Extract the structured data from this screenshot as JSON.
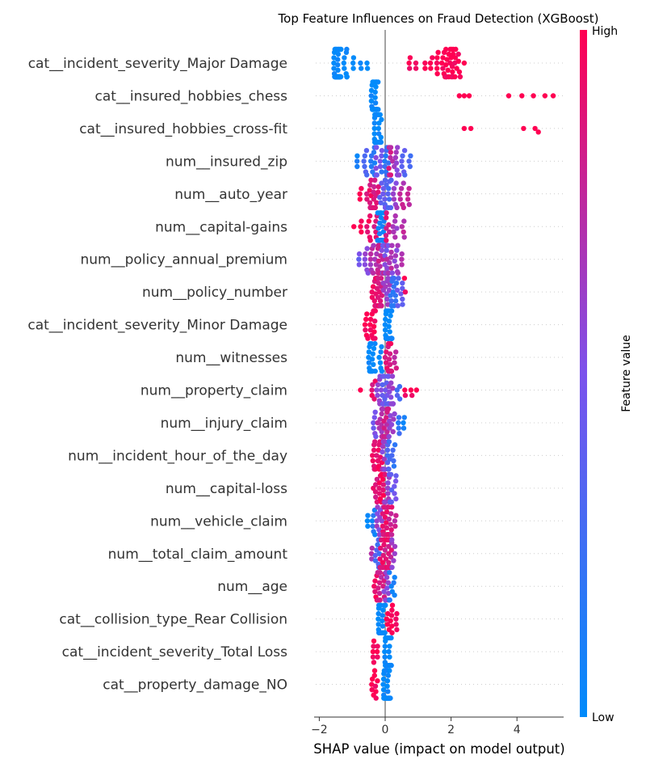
{
  "chart_data": {
    "type": "scatter",
    "subtype": "shap-beeswarm",
    "title": "Top Feature Influences on Fraud Detection (XGBoost)",
    "xlabel": "SHAP value (impact on model output)",
    "xlim": [
      -2.2,
      5.4
    ],
    "xticks": [
      -2,
      0,
      2,
      4
    ],
    "xtick_labels": [
      "−2",
      "0",
      "2",
      "4"
    ],
    "grid": false,
    "colorbar": {
      "label": "Feature value",
      "high_label": "High",
      "low_label": "Low",
      "low_color": "#008bfb",
      "mid_color": "#7c52ec",
      "high_color": "#ff0052",
      "placement": "right"
    },
    "features": [
      {
        "name": "cat__incident_severity_Major Damage",
        "points": [
          [
            -1.45,
            0,
            60
          ],
          [
            -1.2,
            0,
            10
          ],
          [
            -0.95,
            0,
            3
          ],
          [
            -0.75,
            0,
            2
          ],
          [
            -0.55,
            0,
            2
          ],
          [
            0.75,
            1,
            3
          ],
          [
            0.95,
            1,
            2
          ],
          [
            1.2,
            1,
            2
          ],
          [
            1.4,
            1,
            3
          ],
          [
            1.6,
            1,
            5
          ],
          [
            1.8,
            1,
            10
          ],
          [
            1.95,
            1,
            12
          ],
          [
            2.1,
            1,
            8
          ],
          [
            2.25,
            1,
            4
          ],
          [
            2.4,
            1,
            1
          ]
        ]
      },
      {
        "name": "cat__insured_hobbies_chess",
        "points": [
          [
            -0.32,
            0,
            40
          ],
          [
            2.25,
            1,
            1
          ],
          [
            2.4,
            1,
            1
          ],
          [
            2.55,
            1,
            1
          ],
          [
            3.75,
            1,
            1
          ],
          [
            4.15,
            1,
            1
          ],
          [
            4.5,
            1,
            1
          ],
          [
            4.85,
            1,
            1
          ],
          [
            5.1,
            1,
            1
          ]
        ]
      },
      {
        "name": "cat__insured_hobbies_cross-fit",
        "points": [
          [
            -0.22,
            0,
            40
          ],
          [
            2.4,
            1,
            1
          ],
          [
            2.6,
            1,
            1
          ],
          [
            4.2,
            1,
            1
          ],
          [
            4.55,
            1,
            1
          ],
          [
            4.65,
            1,
            1
          ]
        ]
      },
      {
        "name": "num__insured_zip",
        "points": [
          [
            -0.85,
            0.1,
            3
          ],
          [
            -0.6,
            0.3,
            6
          ],
          [
            -0.4,
            0.15,
            8
          ],
          [
            -0.2,
            0.5,
            10
          ],
          [
            0.0,
            0.2,
            12
          ],
          [
            0.15,
            0.8,
            10
          ],
          [
            0.35,
            0.6,
            8
          ],
          [
            0.55,
            0.35,
            6
          ],
          [
            0.75,
            0.3,
            3
          ]
        ]
      },
      {
        "name": "num__auto_year",
        "points": [
          [
            -0.75,
            0.95,
            3
          ],
          [
            -0.5,
            0.9,
            8
          ],
          [
            -0.3,
            0.85,
            12
          ],
          [
            -0.1,
            0.4,
            10
          ],
          [
            0.1,
            0.3,
            8
          ],
          [
            0.3,
            0.6,
            6
          ],
          [
            0.5,
            0.75,
            6
          ],
          [
            0.7,
            0.8,
            4
          ]
        ]
      },
      {
        "name": "num__capital-gains",
        "points": [
          [
            -0.95,
            1,
            1
          ],
          [
            -0.75,
            1,
            3
          ],
          [
            -0.5,
            0.95,
            6
          ],
          [
            -0.3,
            0.9,
            5
          ],
          [
            -0.12,
            0.05,
            25
          ],
          [
            0.1,
            0.85,
            7
          ],
          [
            0.3,
            0.65,
            6
          ],
          [
            0.55,
            0.75,
            4
          ]
        ]
      },
      {
        "name": "num__policy_annual_premium",
        "points": [
          [
            -0.8,
            0.45,
            3
          ],
          [
            -0.55,
            0.6,
            6
          ],
          [
            -0.35,
            0.7,
            10
          ],
          [
            -0.15,
            0.8,
            14
          ],
          [
            0.0,
            0.5,
            16
          ],
          [
            0.15,
            0.7,
            12
          ],
          [
            0.3,
            0.6,
            8
          ],
          [
            0.5,
            0.75,
            3
          ]
        ]
      },
      {
        "name": "num__policy_number",
        "points": [
          [
            -0.3,
            0.9,
            15
          ],
          [
            -0.15,
            0.85,
            14
          ],
          [
            0.05,
            0.6,
            10
          ],
          [
            0.25,
            0.2,
            12
          ],
          [
            0.45,
            0.4,
            8
          ],
          [
            0.6,
            0.95,
            2
          ]
        ]
      },
      {
        "name": "cat__incident_severity_Minor Damage",
        "points": [
          [
            -0.55,
            1,
            6
          ],
          [
            -0.35,
            1,
            12
          ],
          [
            0.1,
            0,
            40
          ]
        ]
      },
      {
        "name": "num__witnesses",
        "points": [
          [
            -0.4,
            0,
            18
          ],
          [
            -0.15,
            0,
            6
          ],
          [
            0.1,
            0.9,
            18
          ],
          [
            0.25,
            0.8,
            10
          ]
        ]
      },
      {
        "name": "num__property_claim",
        "points": [
          [
            -0.75,
            1,
            1
          ],
          [
            -0.35,
            0.9,
            5
          ],
          [
            -0.15,
            0.6,
            10
          ],
          [
            0.0,
            0.4,
            18
          ],
          [
            0.2,
            0.6,
            10
          ],
          [
            0.4,
            0.3,
            4
          ],
          [
            0.6,
            1,
            2
          ],
          [
            0.8,
            1,
            2
          ],
          [
            0.95,
            1,
            1
          ]
        ]
      },
      {
        "name": "num__injury_claim",
        "points": [
          [
            -0.35,
            0.5,
            6
          ],
          [
            -0.15,
            0.7,
            12
          ],
          [
            0.0,
            0.8,
            15
          ],
          [
            0.2,
            0.6,
            8
          ],
          [
            0.4,
            0.2,
            4
          ],
          [
            0.55,
            0.05,
            3
          ]
        ]
      },
      {
        "name": "num__incident_hour_of_the_day",
        "points": [
          [
            -0.35,
            0.9,
            8
          ],
          [
            -0.15,
            0.95,
            14
          ],
          [
            0.0,
            0.6,
            16
          ],
          [
            0.15,
            0.3,
            10
          ],
          [
            0.28,
            0.2,
            3
          ]
        ]
      },
      {
        "name": "num__capital-loss",
        "points": [
          [
            -0.3,
            0.9,
            6
          ],
          [
            -0.1,
            0.95,
            14
          ],
          [
            0.05,
            0.6,
            10
          ],
          [
            0.2,
            0.4,
            8
          ],
          [
            0.35,
            0.45,
            3
          ]
        ]
      },
      {
        "name": "num__vehicle_claim",
        "points": [
          [
            -0.55,
            0.05,
            3
          ],
          [
            -0.35,
            0.1,
            6
          ],
          [
            -0.15,
            0.6,
            10
          ],
          [
            0.0,
            0.9,
            18
          ],
          [
            0.15,
            0.85,
            10
          ],
          [
            0.3,
            0.8,
            3
          ]
        ]
      },
      {
        "name": "num__total_claim_amount",
        "points": [
          [
            -0.4,
            0.7,
            3
          ],
          [
            -0.2,
            0.3,
            10
          ],
          [
            -0.05,
            0.9,
            18
          ],
          [
            0.1,
            0.85,
            14
          ],
          [
            0.25,
            0.6,
            6
          ]
        ]
      },
      {
        "name": "num__age",
        "points": [
          [
            -0.3,
            0.95,
            6
          ],
          [
            -0.12,
            0.8,
            12
          ],
          [
            0.05,
            0.6,
            10
          ],
          [
            0.2,
            0.1,
            8
          ]
        ]
      },
      {
        "name": "cat__collision_type_Rear Collision",
        "points": [
          [
            -0.1,
            0,
            32
          ],
          [
            0.15,
            1,
            10
          ],
          [
            0.35,
            1,
            4
          ]
        ]
      },
      {
        "name": "cat__incident_severity_Total Loss",
        "points": [
          [
            -0.3,
            1,
            8
          ],
          [
            0.08,
            0,
            30
          ]
        ]
      },
      {
        "name": "cat__property_damage_NO",
        "points": [
          [
            -0.3,
            1,
            10
          ],
          [
            0.05,
            0,
            32
          ]
        ]
      }
    ]
  }
}
